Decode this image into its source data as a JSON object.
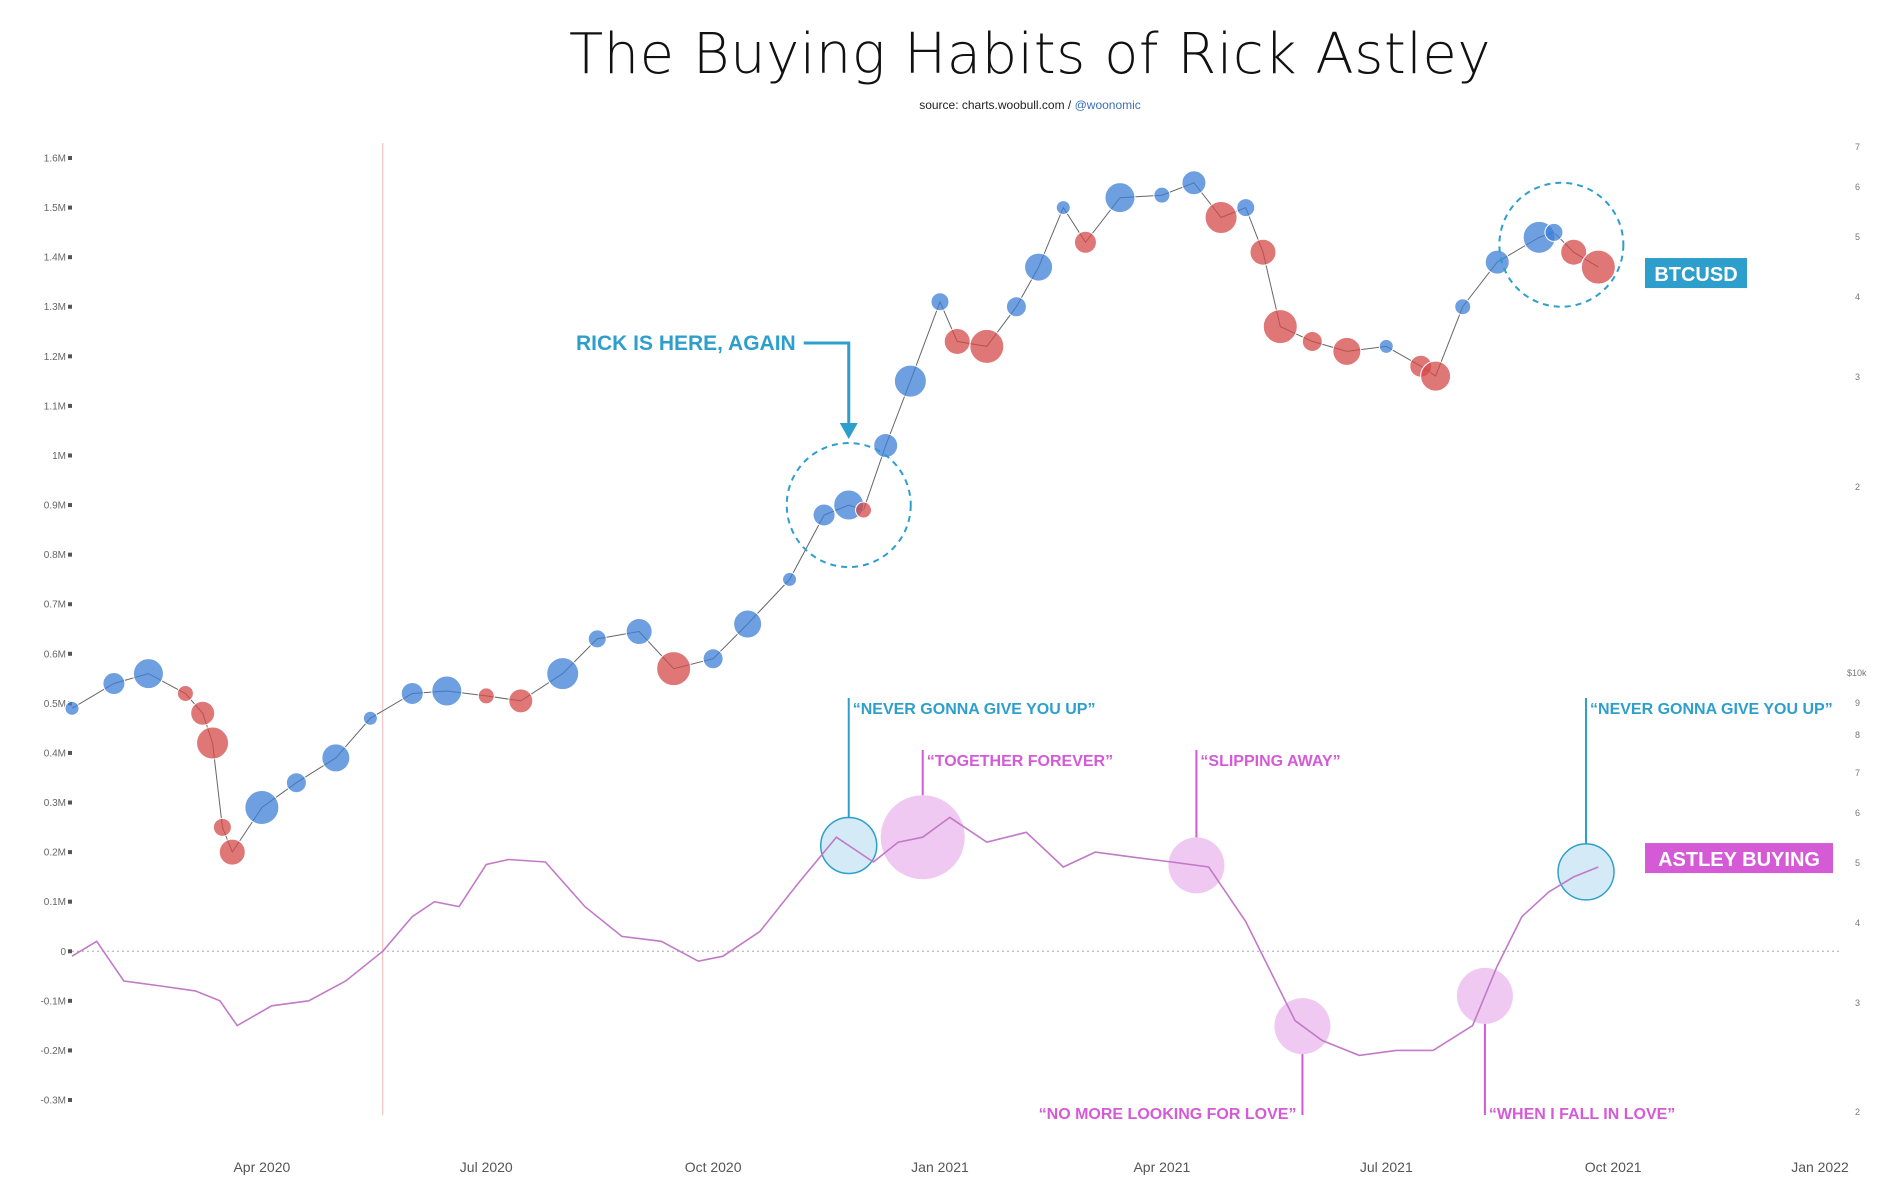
{
  "title": "The Buying Habits of Rick Astley",
  "source_prefix": "source: charts.woobull.com / ",
  "source_handle": "@woonomic",
  "colors": {
    "btc_blue": "#3d7fd6",
    "btc_red": "#d44a4a",
    "astley_line": "#c27ac8",
    "annotation_blue": "#2e9fcc",
    "annotation_pink": "#d45ad6",
    "highlight_blue_fill": "#cfe8f5",
    "highlight_pink_fill": "#edc3f0"
  },
  "chart_data": {
    "type": "line",
    "title": "The Buying Habits of Rick Astley",
    "left_axis": {
      "ticks": [
        "1.6M",
        "1.5M",
        "1.4M",
        "1.3M",
        "1.2M",
        "1.1M",
        "1M",
        "0.9M",
        "0.8M",
        "0.7M",
        "0.6M",
        "0.5M",
        "0.4M",
        "0.3M",
        "0.2M",
        "0.1M",
        "0",
        "-0.1M",
        "-0.2M",
        "-0.3M"
      ],
      "ylim": [
        -300000,
        1600000
      ]
    },
    "right_axis_btc_ticks": [
      "7",
      "6",
      "5",
      "4",
      "3",
      "2"
    ],
    "right_axis_lower_ticks": [
      "$10k",
      "9",
      "8",
      "7",
      "6",
      "5",
      "4",
      "3",
      "2"
    ],
    "x_ticks": [
      "Apr 2020",
      "Jul 2020",
      "Oct 2020",
      "Jan 2021",
      "Apr 2021",
      "Jul 2021",
      "Oct 2021",
      "Jan 2022"
    ],
    "x_range": [
      "2020-01-15",
      "2022-01-01"
    ],
    "series": [
      {
        "name": "BTCUSD",
        "x": [
          "2020-01-15",
          "2020-02-01",
          "2020-02-15",
          "2020-03-01",
          "2020-03-08",
          "2020-03-12",
          "2020-03-16",
          "2020-03-20",
          "2020-04-01",
          "2020-04-15",
          "2020-05-01",
          "2020-05-15",
          "2020-06-01",
          "2020-06-15",
          "2020-07-01",
          "2020-07-15",
          "2020-08-01",
          "2020-08-15",
          "2020-09-01",
          "2020-09-15",
          "2020-10-01",
          "2020-10-15",
          "2020-11-01",
          "2020-11-15",
          "2020-11-25",
          "2020-12-01",
          "2020-12-10",
          "2020-12-20",
          "2021-01-01",
          "2021-01-08",
          "2021-01-20",
          "2021-02-01",
          "2021-02-10",
          "2021-02-20",
          "2021-03-01",
          "2021-03-15",
          "2021-04-01",
          "2021-04-14",
          "2021-04-25",
          "2021-05-05",
          "2021-05-12",
          "2021-05-19",
          "2021-06-01",
          "2021-06-15",
          "2021-07-01",
          "2021-07-15",
          "2021-07-21",
          "2021-08-01",
          "2021-08-15",
          "2021-09-01",
          "2021-09-07",
          "2021-09-15",
          "2021-09-25"
        ],
        "y": [
          490000,
          540000,
          560000,
          520000,
          480000,
          420000,
          250000,
          200000,
          290000,
          340000,
          390000,
          470000,
          520000,
          525000,
          515000,
          505000,
          560000,
          630000,
          645000,
          570000,
          590000,
          660000,
          750000,
          880000,
          900000,
          890000,
          1020000,
          1150000,
          1310000,
          1230000,
          1220000,
          1300000,
          1380000,
          1500000,
          1430000,
          1520000,
          1525000,
          1550000,
          1480000,
          1500000,
          1410000,
          1260000,
          1230000,
          1210000,
          1220000,
          1180000,
          1160000,
          1300000,
          1390000,
          1440000,
          1450000,
          1410000,
          1380000
        ]
      },
      {
        "name": "ASTLEY BUYING",
        "x": [
          "2020-01-15",
          "2020-01-25",
          "2020-02-05",
          "2020-02-20",
          "2020-03-05",
          "2020-03-15",
          "2020-03-22",
          "2020-04-05",
          "2020-04-20",
          "2020-05-05",
          "2020-05-20",
          "2020-06-01",
          "2020-06-10",
          "2020-06-20",
          "2020-07-01",
          "2020-07-10",
          "2020-07-25",
          "2020-08-10",
          "2020-08-25",
          "2020-09-10",
          "2020-09-25",
          "2020-10-05",
          "2020-10-20",
          "2020-11-05",
          "2020-11-20",
          "2020-12-05",
          "2020-12-15",
          "2020-12-25",
          "2021-01-05",
          "2021-01-20",
          "2021-02-05",
          "2021-02-20",
          "2021-03-05",
          "2021-03-20",
          "2021-04-05",
          "2021-04-20",
          "2021-05-05",
          "2021-05-15",
          "2021-05-25",
          "2021-06-05",
          "2021-06-20",
          "2021-07-05",
          "2021-07-20",
          "2021-08-05",
          "2021-08-15",
          "2021-08-25",
          "2021-09-05",
          "2021-09-15",
          "2021-09-25"
        ],
        "y": [
          -10000,
          20000,
          -60000,
          -70000,
          -80000,
          -100000,
          -150000,
          -110000,
          -100000,
          -60000,
          0,
          70000,
          100000,
          90000,
          175000,
          185000,
          180000,
          90000,
          30000,
          20000,
          -20000,
          -10000,
          40000,
          140000,
          230000,
          180000,
          220000,
          230000,
          270000,
          220000,
          240000,
          170000,
          200000,
          190000,
          180000,
          170000,
          60000,
          -40000,
          -140000,
          -180000,
          -210000,
          -200000,
          -200000,
          -150000,
          -30000,
          70000,
          120000,
          150000,
          170000
        ]
      }
    ],
    "annotations": [
      {
        "text": "RICK IS HERE, AGAIN",
        "series": "BTCUSD",
        "x": "2020-11-25"
      },
      {
        "text": "BTCUSD",
        "series": "BTCUSD"
      },
      {
        "text": "ASTLEY BUYING",
        "series": "ASTLEY BUYING"
      },
      {
        "text": "“NEVER GONNA GIVE YOU UP”",
        "x": "2020-11-25",
        "color": "blue"
      },
      {
        "text": "“TOGETHER FOREVER”",
        "x": "2020-12-25",
        "color": "pink"
      },
      {
        "text": "“SLIPPING AWAY”",
        "x": "2021-04-15",
        "color": "pink"
      },
      {
        "text": "“NO MORE LOOKING FOR LOVE”",
        "x": "2021-05-28",
        "color": "pink"
      },
      {
        "text": "“WHEN I FALL IN LOVE”",
        "x": "2021-08-10",
        "color": "pink"
      },
      {
        "text": "“NEVER GONNA GIVE YOU UP”",
        "x": "2021-09-20",
        "color": "blue"
      }
    ],
    "grid": false,
    "zero_line": true
  }
}
